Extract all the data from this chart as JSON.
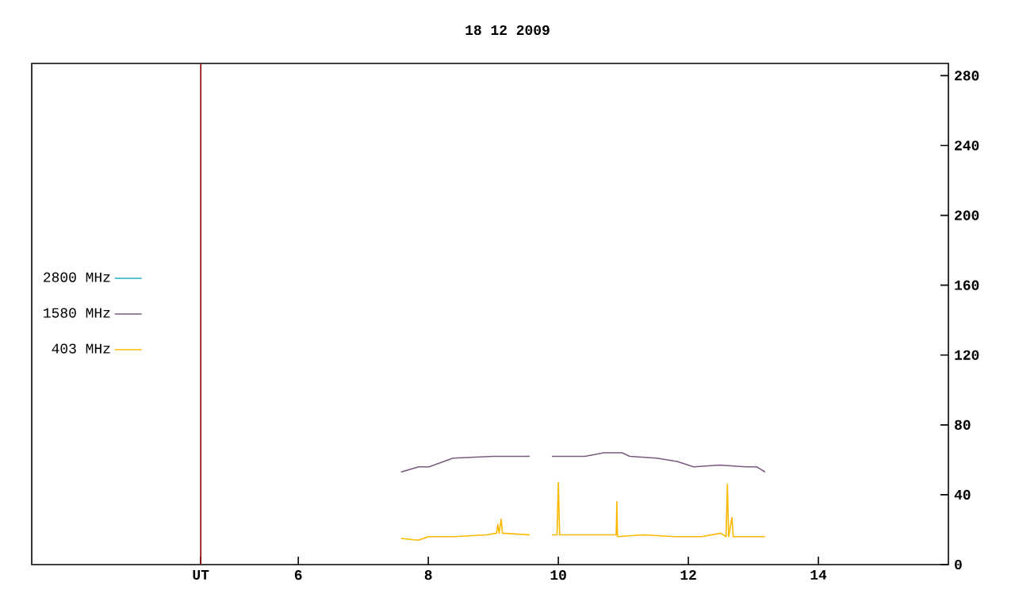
{
  "chart_data": {
    "type": "line",
    "title": "18 12 2009",
    "xlim": [
      1.9,
      16
    ],
    "ylim": [
      0,
      287
    ],
    "xticks": [
      {
        "value": 4.5,
        "label": "UT"
      },
      6,
      8,
      10,
      12,
      14
    ],
    "yticks": [
      0,
      40,
      80,
      120,
      160,
      200,
      240,
      280
    ],
    "legend": "left",
    "ref_lines": [
      {
        "axis": "x",
        "value": 4.5,
        "color": "#8b0000"
      }
    ],
    "series": [
      {
        "name": "2800 MHz",
        "color": "#20b0c0"
      },
      {
        "name": "1580 MHz",
        "color": "#7a5a80",
        "x": [
          7.58,
          7.85,
          8.01,
          8.38,
          9.0,
          9.56,
          9.7,
          9.9,
          10.41,
          10.7,
          10.98,
          11.1,
          11.51,
          11.83,
          12.08,
          12.48,
          12.89,
          13.05,
          13.18
        ],
        "values": [
          53,
          56,
          56,
          61,
          62,
          62,
          null,
          62,
          62,
          64,
          64,
          62,
          61,
          59,
          56,
          57,
          56,
          56,
          53
        ]
      },
      {
        "name": "403 MHz",
        "color": "#ffb800",
        "x": [
          7.58,
          7.85,
          8.0,
          8.4,
          8.9,
          9.05,
          9.07,
          9.09,
          9.12,
          9.14,
          9.56,
          9.7,
          9.9,
          9.98,
          10.0,
          10.02,
          10.5,
          10.89,
          10.9,
          10.91,
          11.3,
          11.8,
          12.2,
          12.5,
          12.58,
          12.6,
          12.62,
          12.67,
          12.69,
          13.0,
          13.18
        ],
        "values": [
          15,
          14,
          16,
          16,
          17,
          18,
          23,
          18,
          26,
          18,
          17,
          null,
          17,
          17,
          47,
          17,
          17,
          17,
          36,
          16,
          17,
          16,
          16,
          18,
          16,
          46,
          16,
          27,
          16,
          16,
          16
        ]
      }
    ]
  }
}
